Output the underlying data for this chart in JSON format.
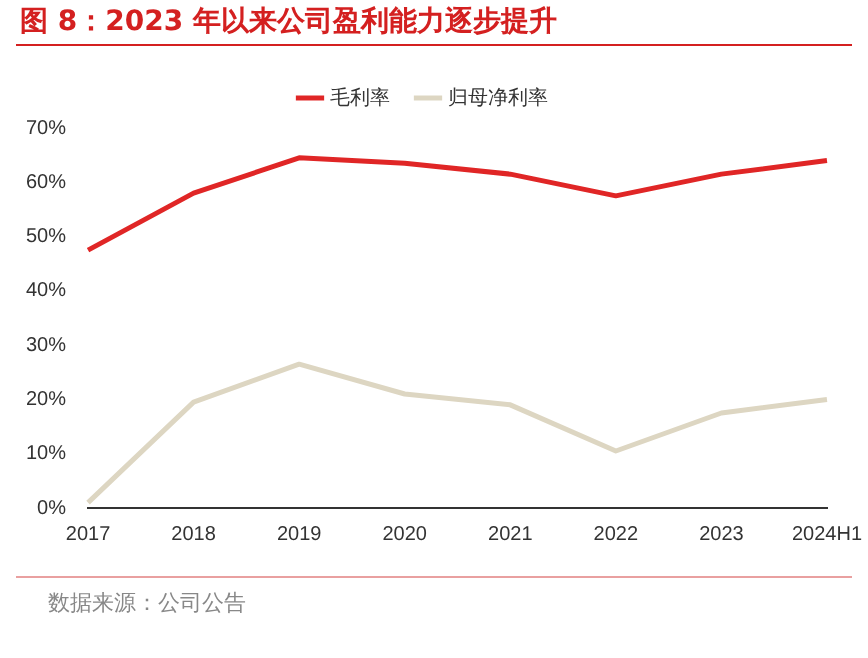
{
  "chart_data": {
    "type": "line",
    "title": "图 8：2023 年以来公司盈利能力逐步提升",
    "categories": [
      "2017",
      "2018",
      "2019",
      "2020",
      "2021",
      "2022",
      "2023",
      "2024H1"
    ],
    "series": [
      {
        "name": "毛利率",
        "color": "#e02626",
        "values": [
          47.5,
          58,
          64.5,
          63.5,
          61.5,
          57.5,
          61.5,
          64
        ]
      },
      {
        "name": "归母净利率",
        "color": "#ddd6c2",
        "values": [
          1,
          19.5,
          26.5,
          21,
          19,
          10.5,
          17.5,
          20
        ]
      }
    ],
    "ylim": [
      0,
      70
    ],
    "yticks": [
      {
        "value": 0,
        "label": "0%"
      },
      {
        "value": 10,
        "label": "10%"
      },
      {
        "value": 20,
        "label": "20%"
      },
      {
        "value": 30,
        "label": "30%"
      },
      {
        "value": 40,
        "label": "40%"
      },
      {
        "value": 50,
        "label": "50%"
      },
      {
        "value": 60,
        "label": "60%"
      },
      {
        "value": 70,
        "label": "70%"
      }
    ],
    "grid": false,
    "legend": "top",
    "marker": "none",
    "line_style": "solid",
    "annotations": [
      "数据来源：公司公告"
    ]
  }
}
